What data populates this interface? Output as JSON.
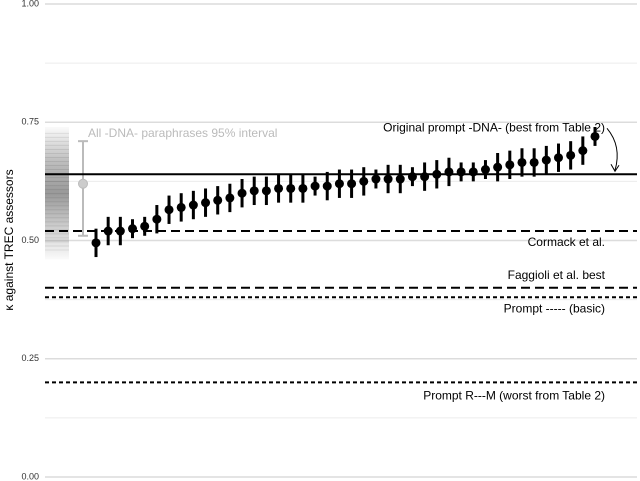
{
  "chart_data": {
    "type": "dot_errorbar",
    "y_label": "κ against TREC assessors",
    "categories": [
      null,
      null,
      null,
      null,
      null,
      null,
      null,
      null,
      null,
      null,
      null,
      null,
      null,
      null,
      null,
      null,
      null,
      null,
      null,
      null,
      null,
      null,
      null,
      null,
      null,
      null,
      null,
      null,
      null,
      null,
      null,
      null,
      null,
      null,
      null,
      null,
      null,
      null,
      null,
      null,
      null,
      null
    ],
    "series": [
      {
        "color": "#000000",
        "values": [
          0.495,
          0.52,
          0.52,
          0.525,
          0.53,
          0.545,
          0.565,
          0.57,
          0.575,
          0.58,
          0.585,
          0.59,
          0.6,
          0.605,
          0.605,
          0.61,
          0.61,
          0.61,
          0.615,
          0.615,
          0.62,
          0.62,
          0.625,
          0.63,
          0.63,
          0.63,
          0.635,
          0.635,
          0.64,
          0.645,
          0.645,
          0.645,
          0.65,
          0.655,
          0.66,
          0.665,
          0.665,
          0.67,
          0.675,
          0.68,
          0.69,
          0.72
        ],
        "errors": [
          0.03,
          0.03,
          0.03,
          0.02,
          0.02,
          0.03,
          0.03,
          0.03,
          0.03,
          0.03,
          0.03,
          0.03,
          0.03,
          0.03,
          0.03,
          0.03,
          0.03,
          0.03,
          0.02,
          0.03,
          0.03,
          0.03,
          0.03,
          0.02,
          0.03,
          0.03,
          0.02,
          0.03,
          0.03,
          0.03,
          0.02,
          0.02,
          0.02,
          0.03,
          0.03,
          0.03,
          0.03,
          0.03,
          0.03,
          0.03,
          0.03,
          0.02
        ]
      }
    ],
    "paraphrase": {
      "label": "All -DNA- paraphrases 95% interval",
      "value": 0.62,
      "interval": [
        0.51,
        0.71
      ],
      "color": "#bbbbbb"
    },
    "reference_lines": [
      {
        "label": "Original prompt -DNA- (best from Table 2)",
        "value": 0.64,
        "style": "solid"
      },
      {
        "label": "Cormack et al.",
        "value": 0.52,
        "style": "dashed"
      },
      {
        "label": "Faggioli et al. best",
        "value": 0.4,
        "style": "dashed"
      },
      {
        "label": "Prompt ----- (basic)",
        "value": 0.38,
        "style": "dotted"
      },
      {
        "label": "Prompt R---M (worst from Table 2)",
        "value": 0.2,
        "style": "dotted"
      }
    ],
    "ylim": [
      0,
      1
    ],
    "yticks": [
      {
        "value": 0,
        "label": "0.00"
      },
      {
        "value": 0.25,
        "label": "0.25"
      },
      {
        "value": 0.5,
        "label": "0.50"
      },
      {
        "value": 0.75,
        "label": "0.75"
      },
      {
        "value": 1,
        "label": "1.00"
      }
    ],
    "minor_yticks": [
      0.125,
      0.375,
      0.625,
      0.875
    ],
    "grid": true
  }
}
